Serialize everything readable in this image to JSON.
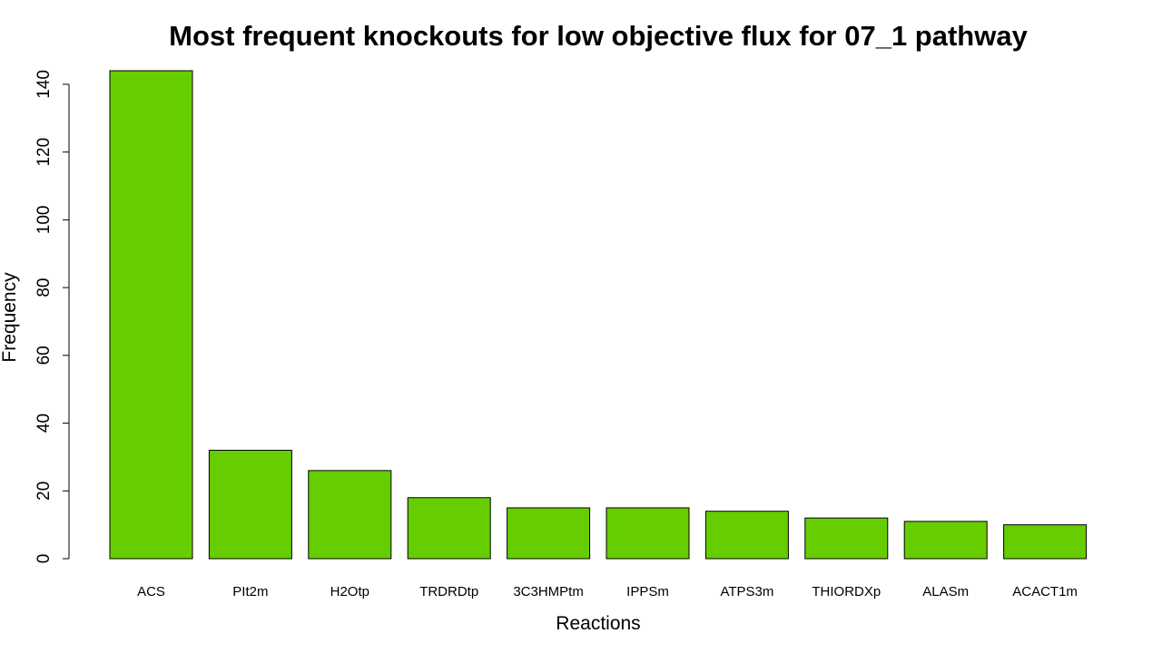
{
  "chart_data": {
    "type": "bar",
    "title": "Most frequent knockouts for low objective flux for 07_1 pathway",
    "xlabel": "Reactions",
    "ylabel": "Frequency",
    "categories": [
      "ACS",
      "PIt2m",
      "H2Otp",
      "TRDRDtp",
      "3C3HMPtm",
      "IPPSm",
      "ATPS3m",
      "THIORDXp",
      "ALASm",
      "ACACT1m"
    ],
    "values": [
      144,
      32,
      26,
      18,
      15,
      15,
      14,
      12,
      11,
      10
    ],
    "yticks": [
      0,
      20,
      40,
      60,
      80,
      100,
      120,
      140
    ],
    "ylim": [
      0,
      144
    ],
    "bar_color": "#66CD00",
    "grid": false,
    "legend": "none"
  }
}
